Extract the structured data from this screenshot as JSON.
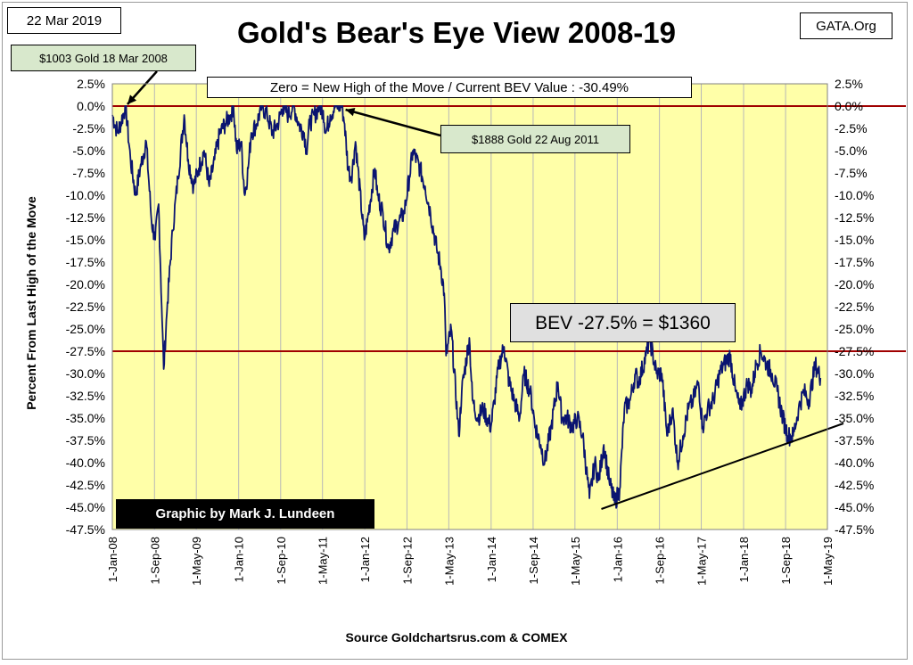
{
  "header": {
    "date_label": "22 Mar 2019",
    "site_label": "GATA.Org"
  },
  "annotations": {
    "high_2008": "$1003 Gold 18 Mar 2008",
    "high_2011": "$1888 Gold 22 Aug 2011",
    "zero_note": "Zero = New High of the Move / Current  BEV Value : -30.49%",
    "bev_level": "BEV -27.5% = $1360",
    "credit": "Graphic by Mark J. Lundeen"
  },
  "colors": {
    "plot_background": "#ffffa8",
    "series_line": "#0a1470",
    "reference_line": "#a00000",
    "trend_line": "#000000"
  },
  "chart_data": {
    "type": "line",
    "title": "Gold's Bear's Eye View 2008-19",
    "ylabel": "Percent  From Last High of the Move",
    "xlabel": "Source Goldchartsrus.com & COMEX",
    "ylim": [
      -47.5,
      2.5
    ],
    "yticks": [
      2.5,
      0,
      -2.5,
      -5,
      -7.5,
      -10,
      -12.5,
      -15,
      -17.5,
      -20,
      -22.5,
      -25,
      -27.5,
      -30,
      -32.5,
      -35,
      -37.5,
      -40,
      -42.5,
      -45,
      -47.5
    ],
    "ytick_labels": [
      "2.5%",
      "0.0%",
      "-2.5%",
      "-5.0%",
      "-7.5%",
      "-10.0%",
      "-12.5%",
      "-15.0%",
      "-17.5%",
      "-20.0%",
      "-22.5%",
      "-25.0%",
      "-27.5%",
      "-30.0%",
      "-32.5%",
      "-35.0%",
      "-37.5%",
      "-40.0%",
      "-42.5%",
      "-45.0%",
      "-47.5%"
    ],
    "xticks": [
      "1-Jan-08",
      "1-Sep-08",
      "1-May-09",
      "1-Jan-10",
      "1-Sep-10",
      "1-May-11",
      "1-Jan-12",
      "1-Sep-12",
      "1-May-13",
      "1-Jan-14",
      "1-Sep-14",
      "1-May-15",
      "1-Jan-16",
      "1-Sep-16",
      "1-May-17",
      "1-Jan-18",
      "1-Sep-18",
      "1-May-19"
    ],
    "x_range": [
      "2008-01-01",
      "2019-05-01"
    ],
    "grid": "vertical",
    "reference_lines": [
      {
        "y": 0
      },
      {
        "y": -27.5
      }
    ],
    "trend_line": {
      "x": [
        "2015-10-01",
        "2019-05-01"
      ],
      "y": [
        -45.2,
        -35.8
      ]
    },
    "series": [
      {
        "x": [
          "2008-01-01",
          "2008-02-01",
          "2008-03-18",
          "2008-04-15",
          "2008-05-15",
          "2008-06-10",
          "2008-07-15",
          "2008-08-15",
          "2008-09-05",
          "2008-09-25",
          "2008-10-15",
          "2008-10-24",
          "2008-11-15",
          "2008-12-15",
          "2009-01-15",
          "2009-02-20",
          "2009-03-15",
          "2009-04-15",
          "2009-05-15",
          "2009-06-15",
          "2009-07-15",
          "2009-08-15",
          "2009-09-15",
          "2009-10-15",
          "2009-11-15",
          "2009-12-02",
          "2009-12-20",
          "2010-01-15",
          "2010-02-05",
          "2010-02-25",
          "2010-03-15",
          "2010-04-15",
          "2010-05-15",
          "2010-06-15",
          "2010-07-15",
          "2010-08-15",
          "2010-09-15",
          "2010-10-15",
          "2010-11-15",
          "2010-12-15",
          "2011-01-15",
          "2011-01-28",
          "2011-02-15",
          "2011-03-15",
          "2011-04-15",
          "2011-05-05",
          "2011-05-20",
          "2011-06-15",
          "2011-07-15",
          "2011-08-22",
          "2011-09-06",
          "2011-09-26",
          "2011-10-15",
          "2011-11-08",
          "2011-12-29",
          "2012-01-15",
          "2012-02-28",
          "2012-03-15",
          "2012-04-15",
          "2012-05-16",
          "2012-06-15",
          "2012-07-15",
          "2012-08-15",
          "2012-09-15",
          "2012-10-05",
          "2012-11-15",
          "2012-12-15",
          "2013-01-15",
          "2013-02-20",
          "2013-03-15",
          "2013-04-05",
          "2013-04-15",
          "2013-05-15",
          "2013-06-28",
          "2013-07-15",
          "2013-08-28",
          "2013-09-15",
          "2013-10-15",
          "2013-11-15",
          "2013-12-31",
          "2014-01-20",
          "2014-02-15",
          "2014-03-17",
          "2014-04-15",
          "2014-05-15",
          "2014-06-15",
          "2014-07-10",
          "2014-08-15",
          "2014-09-15",
          "2014-10-15",
          "2014-11-07",
          "2014-12-15",
          "2015-01-22",
          "2015-02-15",
          "2015-03-17",
          "2015-04-15",
          "2015-05-15",
          "2015-06-15",
          "2015-07-24",
          "2015-08-24",
          "2015-09-15",
          "2015-10-15",
          "2015-11-15",
          "2015-12-17",
          "2016-01-15",
          "2016-02-11",
          "2016-03-15",
          "2016-04-15",
          "2016-05-02",
          "2016-06-15",
          "2016-07-06",
          "2016-08-15",
          "2016-09-15",
          "2016-10-15",
          "2016-11-15",
          "2016-12-15",
          "2017-01-15",
          "2017-02-15",
          "2017-03-15",
          "2017-04-15",
          "2017-05-09",
          "2017-06-06",
          "2017-07-10",
          "2017-08-15",
          "2017-09-08",
          "2017-10-15",
          "2017-11-15",
          "2017-12-12",
          "2018-01-25",
          "2018-02-15",
          "2018-03-15",
          "2018-04-11",
          "2018-05-15",
          "2018-06-15",
          "2018-07-15",
          "2018-08-16",
          "2018-09-15",
          "2018-10-15",
          "2018-11-15",
          "2018-12-15",
          "2019-01-15",
          "2019-02-20",
          "2019-03-22"
        ],
        "values": [
          -1,
          -3,
          0,
          -6,
          -10,
          -7,
          -4,
          -13,
          -15,
          -11,
          -24,
          -29.5,
          -22,
          -14,
          -8,
          -1,
          -6,
          -9,
          -7,
          -5,
          -9,
          -6,
          -3,
          -2,
          -1,
          0,
          -5,
          -4,
          -10,
          -7,
          -3,
          -2,
          0,
          -1,
          -3,
          -2,
          0,
          -1,
          0,
          -2,
          -3,
          -5,
          -2,
          -1,
          0,
          -0.5,
          -3,
          -1,
          0,
          0,
          -2,
          -7,
          -8,
          -4,
          -15,
          -13,
          -7,
          -10,
          -12,
          -16,
          -14,
          -13,
          -12,
          -8,
          -5,
          -7,
          -9,
          -12,
          -16,
          -18,
          -21,
          -28,
          -25,
          -37,
          -32,
          -26,
          -33,
          -35,
          -34,
          -36,
          -33,
          -29,
          -27,
          -31,
          -33,
          -35,
          -30,
          -32,
          -36,
          -38,
          -40,
          -36,
          -31,
          -35,
          -35,
          -36,
          -35,
          -37,
          -44,
          -40,
          -42,
          -38,
          -42,
          -44.5,
          -43,
          -34,
          -33,
          -30,
          -31,
          -28,
          -26,
          -30,
          -30,
          -37,
          -34,
          -40,
          -37,
          -34,
          -33,
          -31,
          -36,
          -34,
          -33,
          -30,
          -29,
          -28,
          -32,
          -34,
          -31,
          -32,
          -29,
          -27.5,
          -29,
          -30,
          -32,
          -35,
          -37,
          -37,
          -34,
          -32,
          -33,
          -29,
          -30.5
        ]
      }
    ]
  },
  "footer": {
    "source": "Source Goldchartsrus.com & COMEX"
  }
}
